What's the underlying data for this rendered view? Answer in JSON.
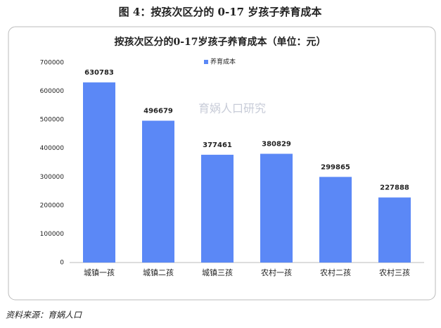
{
  "title": "图 4：按孩次区分的 0-17 岁孩子养育成本",
  "source": "资料来源：育娲人口",
  "watermark": "育娲人口研究",
  "chart_data": {
    "type": "bar",
    "title": "按孩次区分的0-17岁孩子养育成本（单位：元）",
    "categories": [
      "城镇一孩",
      "城镇二孩",
      "城镇三孩",
      "农村一孩",
      "农村二孩",
      "农村三孩"
    ],
    "series": [
      {
        "name": "养育成本",
        "color": "#5b88f6",
        "values": [
          630783,
          496679,
          377461,
          380829,
          299865,
          227888
        ]
      }
    ],
    "ylim": [
      0,
      700000
    ],
    "yticks": [
      0,
      100000,
      200000,
      300000,
      400000,
      500000,
      600000,
      700000
    ],
    "grid": false,
    "legend": "top"
  }
}
